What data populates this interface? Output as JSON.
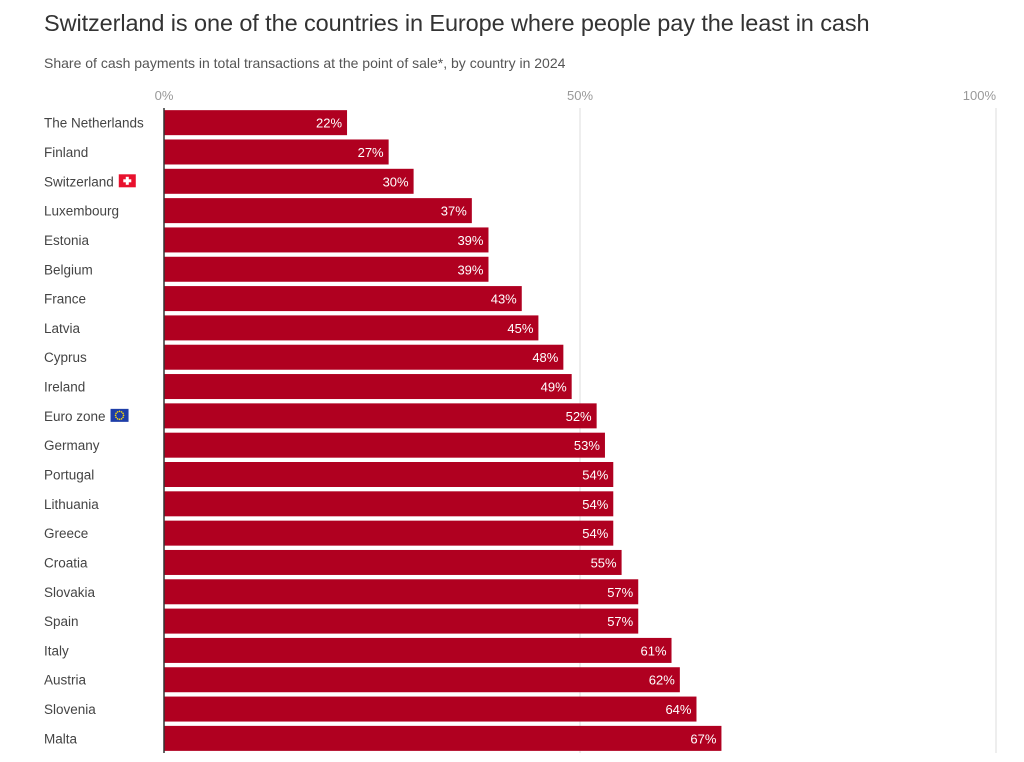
{
  "title": "Switzerland is one of the countries in Europe where people pay the least in cash",
  "subtitle": "Share of cash payments in total transactions at the point of sale*, by country in 2024",
  "colors": {
    "bar": "#b00020",
    "grid": "#dddddd",
    "axis": "#333333",
    "swiss_flag": "#e8112d",
    "eu_flag": "#1e3ea8",
    "eu_stars": "#ffdd00"
  },
  "chart_data": {
    "type": "bar",
    "orientation": "horizontal",
    "title": "Switzerland is one of the countries in Europe where people pay the least in cash",
    "subtitle": "Share of cash payments in total transactions at the point of sale*, by country in 2024",
    "xlabel": "",
    "ylabel": "",
    "xlim": [
      0,
      100
    ],
    "ticks": [
      {
        "value": 0,
        "label": "0%"
      },
      {
        "value": 50,
        "label": "50%"
      },
      {
        "value": 100,
        "label": "100%"
      }
    ],
    "unit_suffix": "%",
    "categories": [
      {
        "label": "The Netherlands",
        "value": 22
      },
      {
        "label": "Finland",
        "value": 27
      },
      {
        "label": "Switzerland",
        "value": 30,
        "flag": "swiss-flag-icon"
      },
      {
        "label": "Luxembourg",
        "value": 37
      },
      {
        "label": "Estonia",
        "value": 39
      },
      {
        "label": "Belgium",
        "value": 39
      },
      {
        "label": "France",
        "value": 43
      },
      {
        "label": "Latvia",
        "value": 45
      },
      {
        "label": "Cyprus",
        "value": 48
      },
      {
        "label": "Ireland",
        "value": 49
      },
      {
        "label": "Euro zone",
        "value": 52,
        "flag": "eu-flag-icon"
      },
      {
        "label": "Germany",
        "value": 53
      },
      {
        "label": "Portugal",
        "value": 54
      },
      {
        "label": "Lithuania",
        "value": 54
      },
      {
        "label": "Greece",
        "value": 54
      },
      {
        "label": "Croatia",
        "value": 55
      },
      {
        "label": "Slovakia",
        "value": 57
      },
      {
        "label": "Spain",
        "value": 57
      },
      {
        "label": "Italy",
        "value": 61
      },
      {
        "label": "Austria",
        "value": 62
      },
      {
        "label": "Slovenia",
        "value": 64
      },
      {
        "label": "Malta",
        "value": 67
      }
    ]
  }
}
